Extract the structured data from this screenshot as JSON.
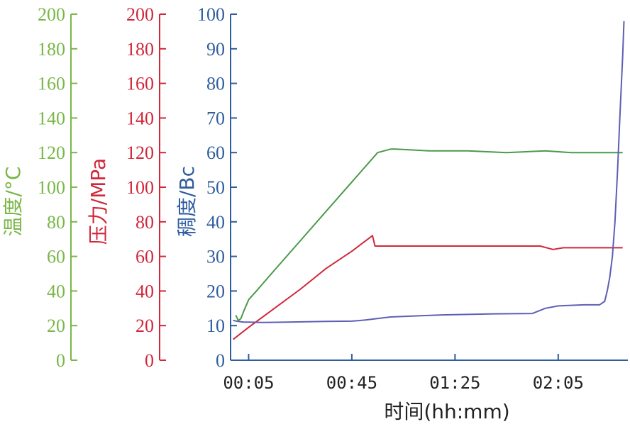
{
  "chart_data": {
    "type": "line",
    "x_unit": "hh:mm",
    "xlabel": "时间(hh:mm)",
    "xlim": [
      -2,
      152
    ],
    "x_ticks": [
      {
        "value": 5,
        "label": "00:05"
      },
      {
        "value": 45,
        "label": "00:45"
      },
      {
        "value": 85,
        "label": "01:25"
      },
      {
        "value": 125,
        "label": "02:05"
      }
    ],
    "axes": [
      {
        "key": "temp",
        "label": "温度/°C",
        "color": "#7ab648",
        "ylim": [
          0,
          200
        ],
        "ticks": [
          0,
          20,
          40,
          60,
          80,
          100,
          120,
          140,
          160,
          180,
          200
        ]
      },
      {
        "key": "press",
        "label": "压力/MPa",
        "color": "#d0283a",
        "ylim": [
          0,
          200
        ],
        "ticks": [
          0,
          20,
          40,
          60,
          80,
          100,
          120,
          140,
          160,
          180,
          200
        ]
      },
      {
        "key": "cons",
        "label": "稠度/Bc",
        "color": "#2f5d9e",
        "ylim": [
          0,
          100
        ],
        "ticks": [
          0,
          10,
          20,
          30,
          40,
          50,
          60,
          70,
          80,
          90,
          100
        ]
      }
    ],
    "series": [
      {
        "axis": "temp",
        "color": "#4a9a4a",
        "points": [
          [
            0,
            26
          ],
          [
            1,
            23
          ],
          [
            2,
            24
          ],
          [
            3,
            28
          ],
          [
            5,
            35
          ],
          [
            8,
            40
          ],
          [
            15,
            52
          ],
          [
            25,
            69
          ],
          [
            35,
            86
          ],
          [
            45,
            103
          ],
          [
            55,
            120
          ],
          [
            60,
            122
          ],
          [
            62,
            122
          ],
          [
            75,
            121
          ],
          [
            90,
            121
          ],
          [
            105,
            120
          ],
          [
            120,
            121
          ],
          [
            130,
            120
          ],
          [
            140,
            120
          ],
          [
            150,
            120
          ]
        ]
      },
      {
        "axis": "press",
        "color": "#d0283a",
        "points": [
          [
            -1,
            12
          ],
          [
            5,
            19
          ],
          [
            15,
            30
          ],
          [
            25,
            41
          ],
          [
            35,
            53
          ],
          [
            45,
            63
          ],
          [
            53,
            72
          ],
          [
            54,
            66
          ],
          [
            70,
            66
          ],
          [
            90,
            66
          ],
          [
            110,
            66
          ],
          [
            118,
            66
          ],
          [
            123,
            64
          ],
          [
            127,
            65
          ],
          [
            140,
            65
          ],
          [
            150,
            65
          ]
        ]
      },
      {
        "axis": "cons",
        "color": "#5d5fb4",
        "points": [
          [
            -1,
            11.5
          ],
          [
            1,
            11.2
          ],
          [
            3,
            11
          ],
          [
            5,
            11
          ],
          [
            10,
            10.9
          ],
          [
            20,
            11
          ],
          [
            35,
            11.2
          ],
          [
            45,
            11.3
          ],
          [
            50,
            11.6
          ],
          [
            60,
            12.5
          ],
          [
            70,
            12.8
          ],
          [
            80,
            13.1
          ],
          [
            100,
            13.4
          ],
          [
            115,
            13.5
          ],
          [
            120,
            15
          ],
          [
            125,
            15.7
          ],
          [
            135,
            16
          ],
          [
            141,
            16
          ],
          [
            143,
            17
          ],
          [
            144,
            20
          ],
          [
            145,
            24
          ],
          [
            146,
            30
          ],
          [
            147,
            40
          ],
          [
            148,
            55
          ],
          [
            149,
            72
          ],
          [
            150,
            88
          ],
          [
            150.5,
            98
          ]
        ]
      }
    ]
  }
}
